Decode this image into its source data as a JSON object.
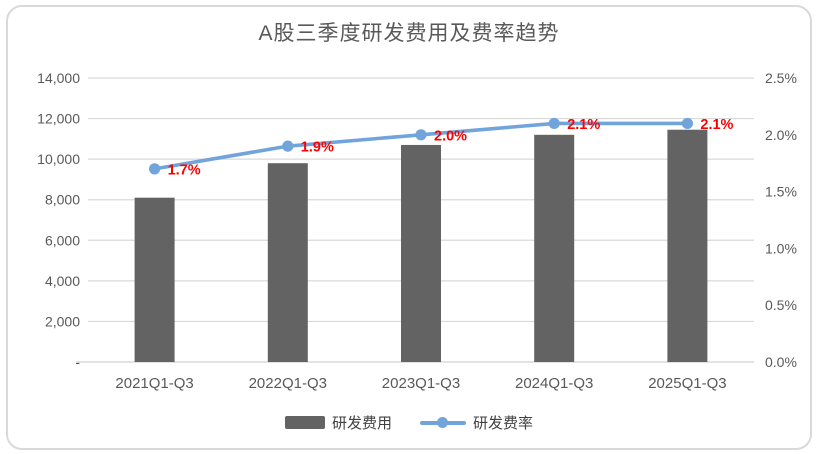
{
  "title": "A股三季度研发费用及费率趋势",
  "colors": {
    "bar": "#636363",
    "line": "#72A4DC",
    "data_label": "#FF0000",
    "grid": "#D9D9D9",
    "axis_text": "#595959",
    "title_text": "#595959",
    "frame_border": "#D9D9D9",
    "legend_text": "#404040"
  },
  "legend": {
    "items": [
      {
        "label": "研发费用",
        "swatch": "bar-swatch"
      },
      {
        "label": "研发费率",
        "swatch": "line-swatch"
      }
    ]
  },
  "chart_data": {
    "type": "bar+line",
    "title": "A股三季度研发费用及费率趋势",
    "categories": [
      "2021Q1-Q3",
      "2022Q1-Q3",
      "2023Q1-Q3",
      "2024Q1-Q3",
      "2025Q1-Q3"
    ],
    "series": [
      {
        "name": "研发费用",
        "type": "bar",
        "axis": "left",
        "values": [
          8100,
          9800,
          10700,
          11200,
          11450
        ]
      },
      {
        "name": "研发费率",
        "type": "line",
        "axis": "right",
        "values": [
          1.7,
          1.9,
          2.0,
          2.1,
          2.1
        ],
        "point_labels": [
          "1.7%",
          "1.9%",
          "2.0%",
          "2.1%",
          "2.1%"
        ]
      }
    ],
    "left_axis": {
      "min": 0,
      "max": 14000,
      "step": 2000,
      "tick_labels": [
        "14,000",
        "12,000",
        "10,000",
        "8,000",
        "6,000",
        "4,000",
        "2,000",
        "-"
      ]
    },
    "right_axis": {
      "min": 0,
      "max": 2.5,
      "step": 0.5,
      "tick_labels": [
        "2.5%",
        "2.0%",
        "1.5%",
        "1.0%",
        "0.5%",
        "0.0%"
      ]
    },
    "grid": true,
    "legend_position": "bottom"
  }
}
